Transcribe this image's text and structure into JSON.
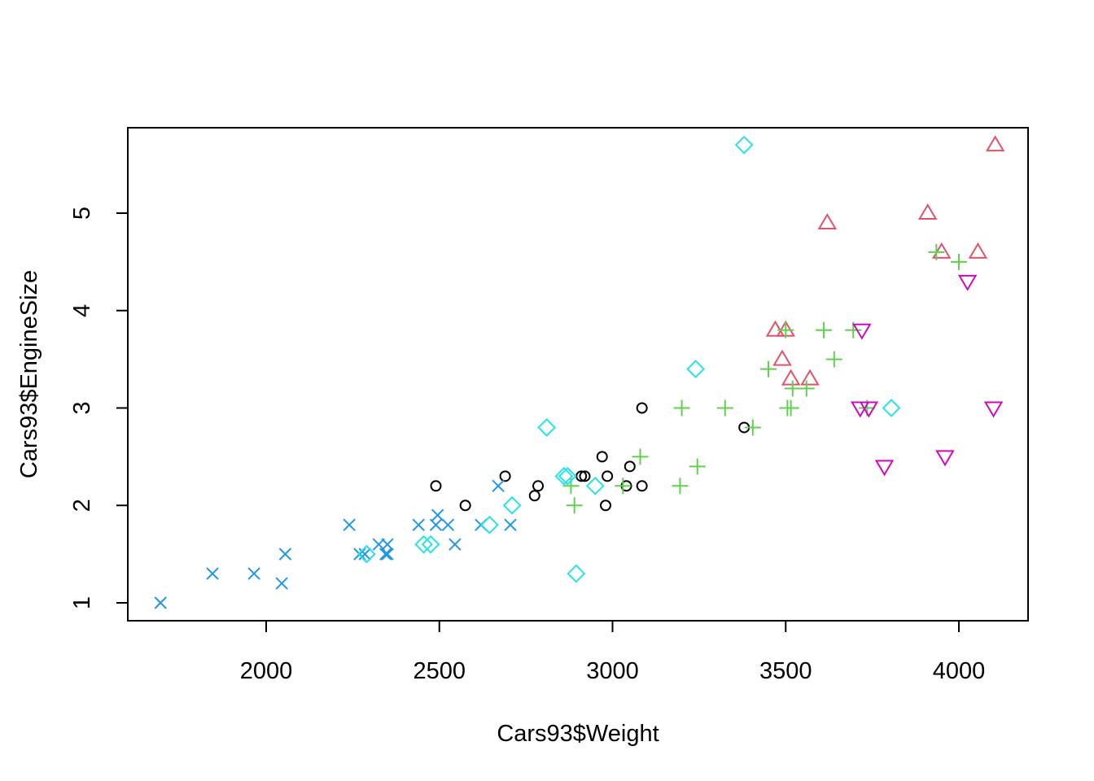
{
  "chart_data": {
    "type": "scatter",
    "title": "",
    "xlabel": "Cars93$Weight",
    "ylabel": "Cars93$EngineSize",
    "xlim": [
      1600,
      4200
    ],
    "ylim": [
      0.8,
      5.9
    ],
    "x_ticks": [
      2000,
      2500,
      3000,
      3500,
      4000
    ],
    "y_ticks": [
      1,
      2,
      3,
      4,
      5
    ],
    "grid": false,
    "legend": "none",
    "colors": {
      "black_circle": "#000000",
      "red_triangle": "#DF536B",
      "green_plus": "#61D04F",
      "blue_x": "#2297E6",
      "cyan_diamond": "#28E2E5",
      "magenta_down_triangle": "#CD0BBC"
    },
    "series": [
      {
        "marker": "circle",
        "color": "#000000",
        "points": [
          [
            2490,
            2.2
          ],
          [
            2575,
            2.0
          ],
          [
            2690,
            2.3
          ],
          [
            2775,
            2.1
          ],
          [
            2785,
            2.2
          ],
          [
            2910,
            2.3
          ],
          [
            2920,
            2.3
          ],
          [
            2970,
            2.5
          ],
          [
            2980,
            2.0
          ],
          [
            2985,
            2.3
          ],
          [
            3040,
            2.2
          ],
          [
            3050,
            2.4
          ],
          [
            3085,
            2.2
          ],
          [
            3085,
            3.0
          ],
          [
            3380,
            2.8
          ]
        ]
      },
      {
        "marker": "triangle",
        "color": "#DF536B",
        "points": [
          [
            3470,
            3.8
          ],
          [
            3490,
            3.5
          ],
          [
            3500,
            3.8
          ],
          [
            3515,
            3.3
          ],
          [
            3570,
            3.3
          ],
          [
            3620,
            4.9
          ],
          [
            3910,
            5.0
          ],
          [
            3950,
            4.6
          ],
          [
            4055,
            4.6
          ],
          [
            4105,
            5.7
          ]
        ]
      },
      {
        "marker": "plus",
        "color": "#61D04F",
        "points": [
          [
            2880,
            2.2
          ],
          [
            2890,
            2.0
          ],
          [
            3030,
            2.2
          ],
          [
            3080,
            2.5
          ],
          [
            3195,
            2.2
          ],
          [
            3200,
            3.0
          ],
          [
            3245,
            2.4
          ],
          [
            3325,
            3.0
          ],
          [
            3405,
            2.8
          ],
          [
            3450,
            3.4
          ],
          [
            3500,
            3.8
          ],
          [
            3505,
            3.0
          ],
          [
            3515,
            3.0
          ],
          [
            3520,
            3.2
          ],
          [
            3560,
            3.2
          ],
          [
            3610,
            3.8
          ],
          [
            3640,
            3.5
          ],
          [
            3695,
            3.8
          ],
          [
            3735,
            3.0
          ],
          [
            3935,
            4.6
          ],
          [
            4000,
            4.5
          ]
        ]
      },
      {
        "marker": "x",
        "color": "#2297E6",
        "points": [
          [
            1695,
            1.0
          ],
          [
            1845,
            1.3
          ],
          [
            1965,
            1.3
          ],
          [
            2045,
            1.2
          ],
          [
            2055,
            1.5
          ],
          [
            2240,
            1.8
          ],
          [
            2270,
            1.5
          ],
          [
            2285,
            1.5
          ],
          [
            2325,
            1.6
          ],
          [
            2345,
            1.5
          ],
          [
            2350,
            1.5
          ],
          [
            2350,
            1.6
          ],
          [
            2440,
            1.8
          ],
          [
            2490,
            1.8
          ],
          [
            2495,
            1.9
          ],
          [
            2525,
            1.8
          ],
          [
            2545,
            1.6
          ],
          [
            2620,
            1.8
          ],
          [
            2670,
            2.2
          ],
          [
            2705,
            1.8
          ]
        ]
      },
      {
        "marker": "diamond",
        "color": "#28E2E5",
        "points": [
          [
            2290,
            1.5
          ],
          [
            2455,
            1.6
          ],
          [
            2475,
            1.6
          ],
          [
            2645,
            1.8
          ],
          [
            2710,
            2.0
          ],
          [
            2810,
            2.8
          ],
          [
            2860,
            2.3
          ],
          [
            2870,
            2.3
          ],
          [
            2895,
            1.3
          ],
          [
            2950,
            2.2
          ],
          [
            3240,
            3.4
          ],
          [
            3380,
            5.7
          ],
          [
            3805,
            3.0
          ]
        ]
      },
      {
        "marker": "down-triangle",
        "color": "#CD0BBC",
        "points": [
          [
            3715,
            3.0
          ],
          [
            3720,
            3.8
          ],
          [
            3740,
            3.0
          ],
          [
            3785,
            2.4
          ],
          [
            3960,
            2.5
          ],
          [
            4025,
            4.3
          ],
          [
            4100,
            3.0
          ]
        ]
      }
    ]
  }
}
